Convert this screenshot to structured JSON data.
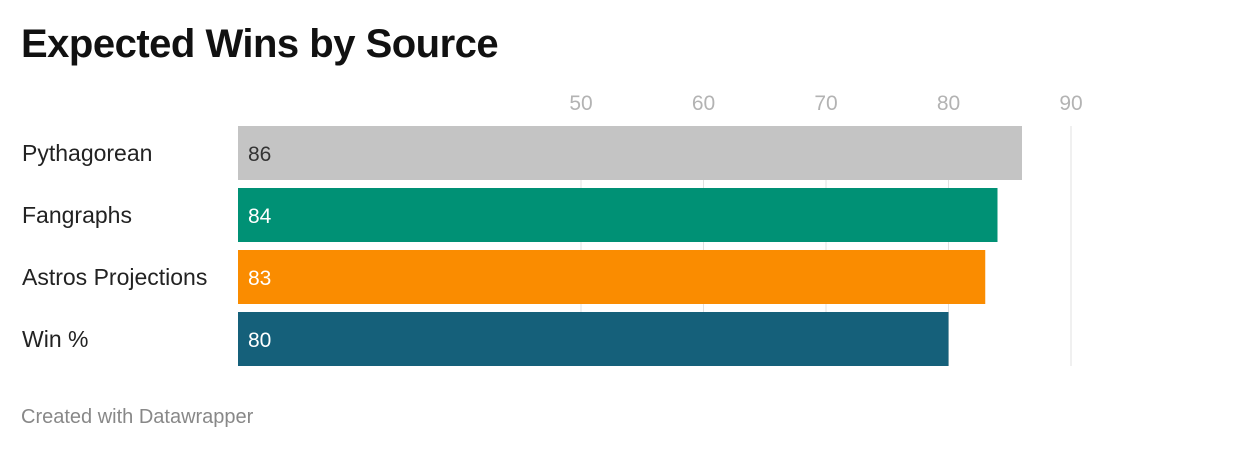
{
  "title": "Expected Wins by Source",
  "footer": "Created with Datawrapper",
  "chart_data": {
    "type": "bar",
    "orientation": "horizontal",
    "categories": [
      "Pythagorean",
      "Fangraphs",
      "Astros Projections",
      "Win %"
    ],
    "values": [
      86,
      84,
      83,
      80
    ],
    "colors": [
      "#c4c4c4",
      "#009175",
      "#fa8c00",
      "#15607a"
    ],
    "value_label_colors": [
      "#333333",
      "#ffffff",
      "#ffffff",
      "#ffffff"
    ],
    "xticks": [
      50,
      60,
      70,
      80,
      90
    ],
    "xlim": [
      22,
      94
    ],
    "grid": true,
    "title": "Expected Wins by Source"
  }
}
